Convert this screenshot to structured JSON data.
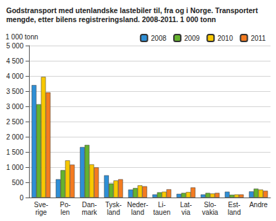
{
  "chart_data": {
    "type": "bar",
    "title": "Godstransport med utenlandske lastebiler til, fra og i Norge. Transportert mengde, etter bilens registreringsland. 2008-2011. 1 000 tonn",
    "y_label": "1 000 tonn",
    "categories": [
      "Sve-\nrige",
      "Po-\nlen",
      "Dan-\nmark",
      "Tysk-\nland",
      "Neder-\nland",
      "Li-\ntauen",
      "Lat-\nvia",
      "Slo-\nvakia",
      "Est-\nland",
      "Andre"
    ],
    "series": [
      {
        "name": "2008",
        "color": "#2e8fd6",
        "values": [
          3700,
          600,
          1660,
          730,
          260,
          100,
          120,
          100,
          190,
          200
        ]
      },
      {
        "name": "2009",
        "color": "#65b22e",
        "values": [
          3070,
          900,
          1730,
          460,
          310,
          170,
          150,
          150,
          90,
          290
        ]
      },
      {
        "name": "2010",
        "color": "#f8c800",
        "values": [
          3970,
          1220,
          1090,
          560,
          400,
          190,
          180,
          130,
          100,
          260
        ]
      },
      {
        "name": "2011",
        "color": "#f47b20",
        "values": [
          3460,
          1080,
          990,
          600,
          370,
          270,
          330,
          150,
          100,
          220
        ]
      }
    ],
    "ylim": [
      0,
      5000
    ],
    "yticks": [
      0,
      500,
      {
        "value": 1000,
        "label": "1 000"
      },
      {
        "value": 1500,
        "label": "1 500"
      },
      {
        "value": 2000,
        "label": "2 000"
      },
      {
        "value": 2500,
        "label": "2 500"
      },
      {
        "value": 3000,
        "label": "3 000"
      },
      {
        "value": 3500,
        "label": "3 500"
      },
      {
        "value": 4000,
        "label": "4 000"
      },
      {
        "value": 4500,
        "label": "4 500"
      },
      {
        "value": 5000,
        "label": "5 000"
      }
    ],
    "grid": true,
    "legend": "top-right"
  }
}
